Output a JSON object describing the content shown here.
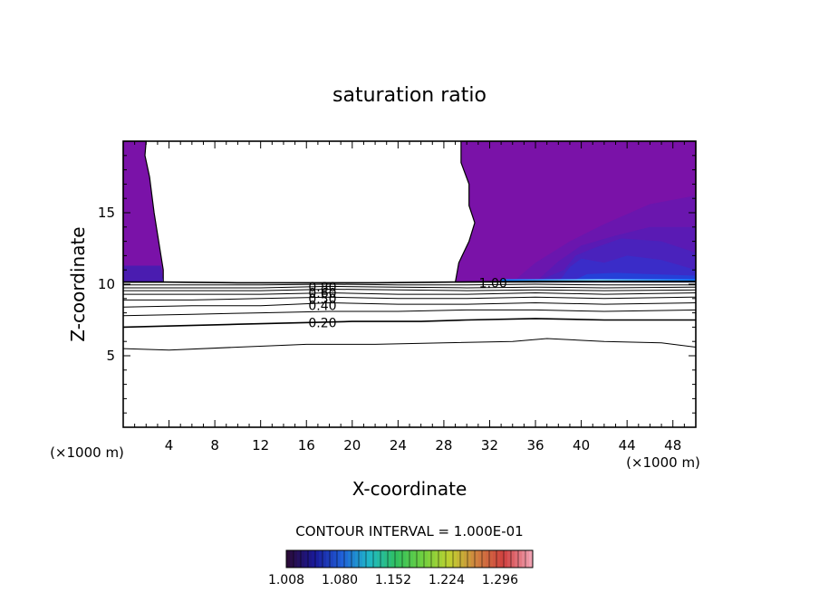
{
  "chart_data": {
    "type": "contour",
    "title": "saturation ratio",
    "xlabel": "X-coordinate",
    "ylabel": "Z-coordinate",
    "x_unit_left": "(×1000 m)",
    "x_unit_right": "(×1000 m)",
    "xlim": [
      0,
      50
    ],
    "ylim": [
      0,
      20
    ],
    "x_ticks": [
      4,
      8,
      12,
      16,
      20,
      24,
      28,
      32,
      36,
      40,
      44,
      48
    ],
    "y_ticks": [
      5,
      10,
      15
    ],
    "contour_interval_label": "CONTOUR INTERVAL = 1.000E-01",
    "contour_labels": [
      {
        "text": "0.80",
        "x": 17.4,
        "z": 9.8
      },
      {
        "text": "0.60",
        "x": 17.4,
        "z": 9.4
      },
      {
        "text": "0.50",
        "x": 17.4,
        "z": 9.0
      },
      {
        "text": "0.40",
        "x": 17.4,
        "z": 8.5
      },
      {
        "text": "0.20",
        "x": 17.4,
        "z": 7.3
      },
      {
        "text": "1.00",
        "x": 32.3,
        "z": 10.1
      }
    ],
    "contour_lines": [
      {
        "level": 0.1,
        "points": [
          [
            0,
            5.5
          ],
          [
            4,
            5.4
          ],
          [
            10,
            5.6
          ],
          [
            16,
            5.8
          ],
          [
            22,
            5.8
          ],
          [
            28,
            5.9
          ],
          [
            34,
            6.0
          ],
          [
            37,
            6.2
          ],
          [
            42,
            6.0
          ],
          [
            47,
            5.9
          ],
          [
            50,
            5.6
          ]
        ]
      },
      {
        "level": 0.2,
        "points": [
          [
            0,
            7.0
          ],
          [
            5,
            7.1
          ],
          [
            10,
            7.2
          ],
          [
            15,
            7.3
          ],
          [
            20,
            7.4
          ],
          [
            26,
            7.4
          ],
          [
            30,
            7.5
          ],
          [
            36,
            7.6
          ],
          [
            42,
            7.5
          ],
          [
            50,
            7.5
          ]
        ]
      },
      {
        "level": 0.3,
        "points": [
          [
            0,
            7.8
          ],
          [
            6,
            7.9
          ],
          [
            12,
            8.0
          ],
          [
            18,
            8.1
          ],
          [
            24,
            8.1
          ],
          [
            30,
            8.2
          ],
          [
            36,
            8.2
          ],
          [
            42,
            8.1
          ],
          [
            50,
            8.2
          ]
        ]
      },
      {
        "level": 0.4,
        "points": [
          [
            0,
            8.4
          ],
          [
            6,
            8.5
          ],
          [
            12,
            8.5
          ],
          [
            18,
            8.7
          ],
          [
            24,
            8.6
          ],
          [
            30,
            8.6
          ],
          [
            36,
            8.7
          ],
          [
            42,
            8.6
          ],
          [
            50,
            8.7
          ]
        ]
      },
      {
        "level": 0.5,
        "points": [
          [
            0,
            8.9
          ],
          [
            6,
            8.9
          ],
          [
            12,
            9.0
          ],
          [
            18,
            9.1
          ],
          [
            24,
            9.0
          ],
          [
            30,
            9.0
          ],
          [
            36,
            9.1
          ],
          [
            42,
            9.0
          ],
          [
            50,
            9.1
          ]
        ]
      },
      {
        "level": 0.6,
        "points": [
          [
            0,
            9.3
          ],
          [
            6,
            9.3
          ],
          [
            12,
            9.3
          ],
          [
            18,
            9.4
          ],
          [
            24,
            9.3
          ],
          [
            30,
            9.3
          ],
          [
            36,
            9.4
          ],
          [
            42,
            9.3
          ],
          [
            50,
            9.4
          ]
        ]
      },
      {
        "level": 0.7,
        "points": [
          [
            0,
            9.55
          ],
          [
            6,
            9.55
          ],
          [
            12,
            9.55
          ],
          [
            18,
            9.65
          ],
          [
            24,
            9.6
          ],
          [
            30,
            9.55
          ],
          [
            36,
            9.6
          ],
          [
            42,
            9.55
          ],
          [
            50,
            9.6
          ]
        ]
      },
      {
        "level": 0.8,
        "points": [
          [
            0,
            9.75
          ],
          [
            6,
            9.75
          ],
          [
            12,
            9.75
          ],
          [
            18,
            9.85
          ],
          [
            24,
            9.8
          ],
          [
            30,
            9.75
          ],
          [
            36,
            9.8
          ],
          [
            42,
            9.75
          ],
          [
            50,
            9.8
          ]
        ]
      },
      {
        "level": 0.9,
        "points": [
          [
            0,
            9.95
          ],
          [
            6,
            9.95
          ],
          [
            12,
            9.95
          ],
          [
            18,
            10.0
          ],
          [
            24,
            9.95
          ],
          [
            30,
            9.95
          ],
          [
            36,
            10.0
          ],
          [
            42,
            9.95
          ],
          [
            50,
            9.95
          ]
        ]
      },
      {
        "level": 1.0,
        "points": [
          [
            0,
            10.15
          ],
          [
            3.5,
            10.15
          ],
          [
            10,
            10.1
          ],
          [
            16,
            10.1
          ],
          [
            22,
            10.1
          ],
          [
            29,
            10.15
          ],
          [
            36,
            10.2
          ],
          [
            42,
            10.2
          ],
          [
            50,
            10.2
          ]
        ]
      }
    ],
    "supersaturated_region_left": [
      [
        0,
        20
      ],
      [
        2.0,
        20
      ],
      [
        1.9,
        19.0
      ],
      [
        2.3,
        17.5
      ],
      [
        2.7,
        15.0
      ],
      [
        3.2,
        12.5
      ],
      [
        3.5,
        11.0
      ],
      [
        3.5,
        10.15
      ],
      [
        0,
        10.15
      ]
    ],
    "supersaturated_region_right": [
      [
        29.5,
        20
      ],
      [
        50,
        20
      ],
      [
        50,
        10.15
      ],
      [
        29.0,
        10.15
      ],
      [
        29.3,
        11.5
      ],
      [
        30.2,
        13.0
      ],
      [
        30.7,
        14.3
      ],
      [
        30.2,
        15.5
      ],
      [
        30.2,
        17.0
      ],
      [
        29.5,
        18.5
      ]
    ],
    "colorbar": {
      "min": 1.008,
      "max": 1.34,
      "tick_labels": [
        "1.008",
        "1.080",
        "1.152",
        "1.224",
        "1.296"
      ],
      "colors": [
        "#2a0b3a",
        "#1a1a9a",
        "#2060d8",
        "#20b8c8",
        "#30c060",
        "#70d040",
        "#c0d030",
        "#d08040",
        "#d04040",
        "#f0a0b0"
      ]
    }
  }
}
